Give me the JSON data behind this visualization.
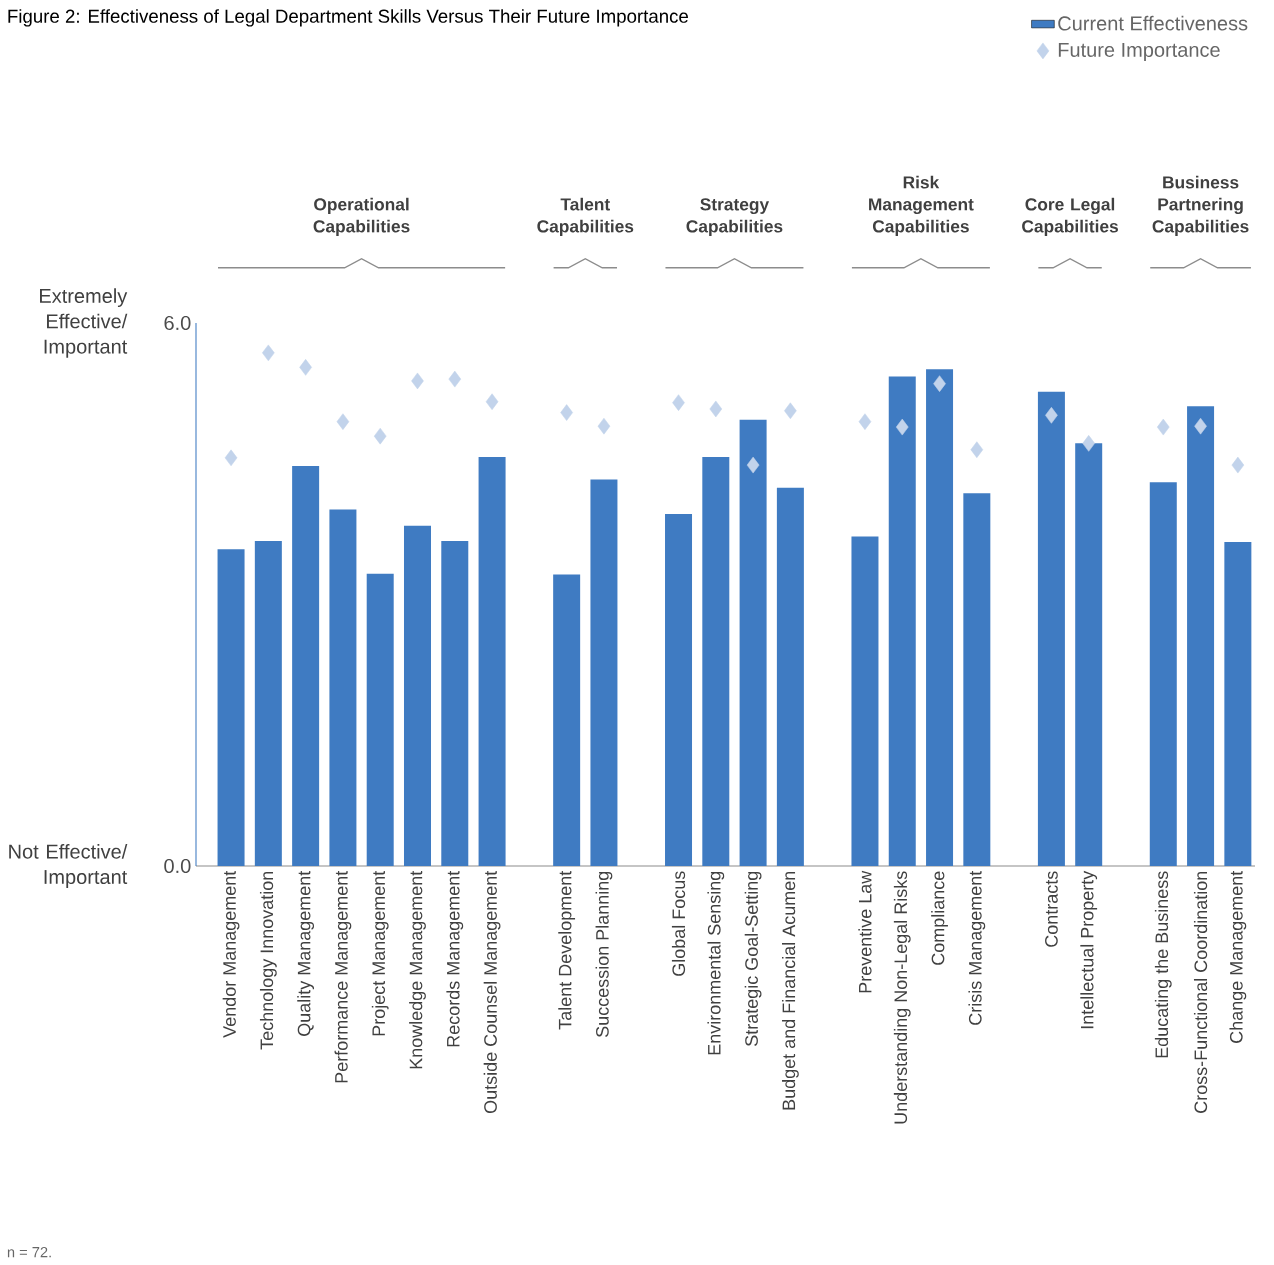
{
  "chart_data": {
    "type": "bar",
    "title": "Figure 2: Effectiveness of Legal Department Skills Versus Their Future Importance",
    "categories": [
      "Vendor Management",
      "Technology Innovation",
      "Quality Management",
      "Performance Management",
      "Project Management",
      "Knowledge Management",
      "Records Management",
      "Outside Counsel Management",
      null,
      "Talent Development",
      "Succession Planning",
      null,
      "Global Focus",
      "Environmental Sensing",
      "Strategic Goal-Setting",
      "Budget and Financial Acumen",
      null,
      "Preventive Law",
      "Understanding Non-Legal Risks",
      "Compliance",
      "Crisis Management",
      null,
      "Contracts",
      "Intellectual Property",
      null,
      "Educating the Business",
      "Cross-Functional Coordination",
      "Change Management"
    ],
    "series": [
      {
        "name": "Current Effectiveness",
        "type": "bar",
        "color": "#3f7bc2",
        "values": [
          3.5,
          3.59,
          4.42,
          3.94,
          3.23,
          3.76,
          3.59,
          4.52,
          null,
          3.22,
          4.27,
          null,
          3.89,
          4.52,
          4.93,
          4.18,
          null,
          3.64,
          5.41,
          5.49,
          4.12,
          null,
          5.24,
          4.67,
          null,
          4.24,
          5.08,
          3.58
        ]
      },
      {
        "name": "Future Importance",
        "type": "scatter",
        "color": "#c2d3eb",
        "values": [
          4.51,
          5.67,
          5.51,
          4.91,
          4.75,
          5.36,
          5.38,
          5.13,
          null,
          5.01,
          4.86,
          null,
          5.12,
          5.05,
          4.43,
          5.03,
          null,
          4.91,
          4.85,
          5.33,
          4.6,
          null,
          4.98,
          4.67,
          null,
          4.85,
          4.86,
          4.43
        ]
      }
    ],
    "ylim": [
      0,
      6
    ],
    "yticks": [
      {
        "value": 0,
        "label": "0.0"
      },
      {
        "value": 6,
        "label": "6.0"
      }
    ],
    "marker": "diamond",
    "legend": "top right",
    "annotations": [
      "Operational Capabilities",
      "Talent Capabilities",
      "Strategy Capabilities",
      "Risk Management Capabilities",
      "Core Legal Capabilities",
      "Business Partnering Capabilities",
      "Extremely Effective/ Important",
      "Not Effective/ Important",
      "n = 72."
    ]
  }
}
